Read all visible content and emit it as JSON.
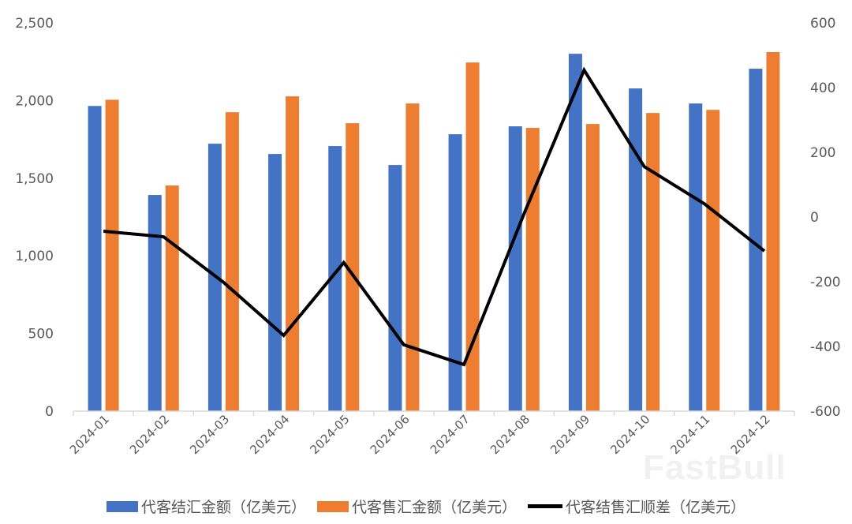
{
  "chart_data": {
    "type": "bar+line",
    "title": "",
    "categories": [
      "2024-01",
      "2024-02",
      "2024-03",
      "2024-04",
      "2024-05",
      "2024-06",
      "2024-07",
      "2024-08",
      "2024-09",
      "2024-10",
      "2024-11",
      "2024-12"
    ],
    "series": [
      {
        "name": "代客结汇金额（亿美元）",
        "type": "bar",
        "axis": "left",
        "color": "#4472C4",
        "values": [
          1965,
          1392,
          1722,
          1656,
          1707,
          1585,
          1783,
          1834,
          2301,
          2078,
          1981,
          2205
        ]
      },
      {
        "name": "代客售汇金额（亿美元）",
        "type": "bar",
        "axis": "left",
        "color": "#ED7D31",
        "values": [
          2005,
          1453,
          1925,
          2027,
          1854,
          1981,
          2245,
          1824,
          1849,
          1920,
          1940,
          2312
        ]
      },
      {
        "name": "代客结售汇顺差（亿美元）",
        "type": "line",
        "axis": "right",
        "color": "#000000",
        "values": [
          -44,
          -61,
          -202,
          -366,
          -141,
          -395,
          -456,
          10,
          454,
          156,
          41,
          -105
        ]
      }
    ],
    "left_axis": {
      "ylim": [
        0,
        2500
      ],
      "ticks": [
        0,
        500,
        1000,
        1500,
        2000,
        2500
      ],
      "tick_labels": [
        "0",
        "500",
        "1,000",
        "1,500",
        "2,000",
        "2,500"
      ]
    },
    "right_axis": {
      "ylim": [
        -600,
        600
      ],
      "ticks": [
        -600,
        -400,
        -200,
        0,
        200,
        400,
        600
      ],
      "tick_labels": [
        "-600",
        "-400",
        "-200",
        "0",
        "200",
        "400",
        "600"
      ]
    },
    "xlabel": "",
    "ylabel": "",
    "grid": false,
    "legend_position": "bottom"
  },
  "legend": {
    "items": [
      {
        "label": "代客结汇金额（亿美元）",
        "color": "#4472C4",
        "kind": "bar"
      },
      {
        "label": "代客售汇金额（亿美元）",
        "color": "#ED7D31",
        "kind": "bar"
      },
      {
        "label": "代客结售汇顺差（亿美元）",
        "color": "#000000",
        "kind": "line"
      }
    ]
  },
  "watermark": "FastBull"
}
